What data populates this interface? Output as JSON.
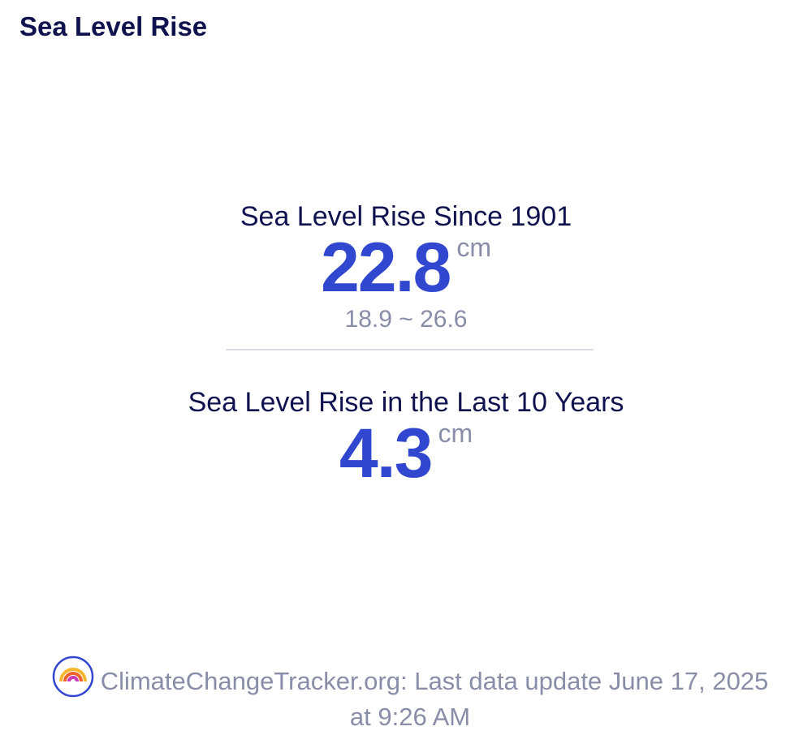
{
  "header": {
    "title": "Sea Level Rise"
  },
  "stats": [
    {
      "label": "Sea Level Rise Since 1901",
      "value": 22.8,
      "unit": "cm",
      "range": "18.9 ~ 26.6"
    },
    {
      "label": "Sea Level Rise in the Last 10 Years",
      "value": 4.3,
      "unit": "cm"
    }
  ],
  "footer": {
    "text": "ClimateChangeTracker.org: Last data update June 17, 2025 at 9:26 AM"
  }
}
